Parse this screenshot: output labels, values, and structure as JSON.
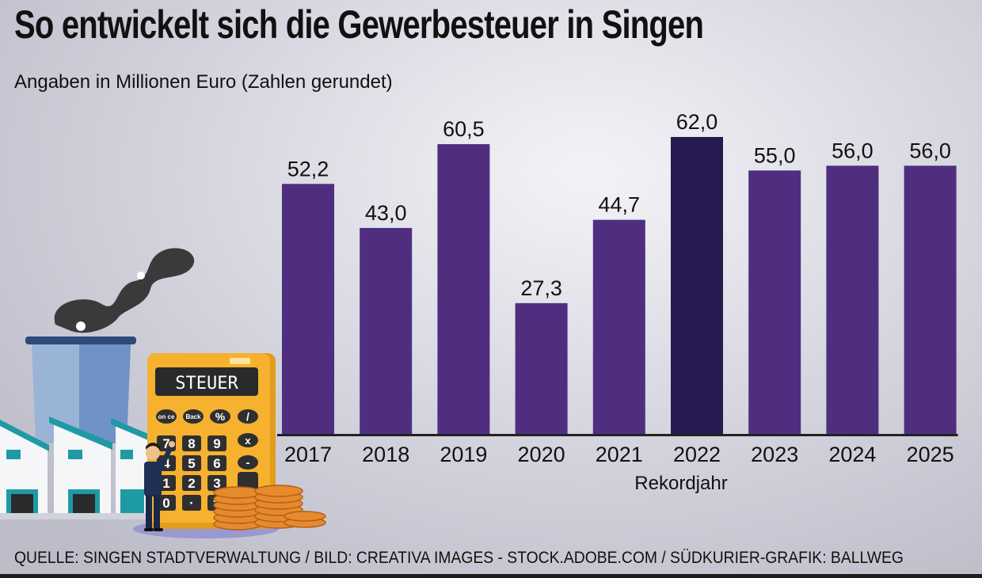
{
  "title": "So entwickelt sich die Gewerbesteuer in Singen",
  "subtitle": "Angaben in Millionen Euro (Zahlen gerundet)",
  "source": "QUELLE: SINGEN STADTVERWALTUNG / BILD: CREATIVA IMAGES - STOCK.ADOBE.COM / SÜDKURIER-GRAFIK: BALLWEG",
  "colors": {
    "bar": "#4f2e80",
    "highlight_bar": "#271a50",
    "axis": "#222222"
  },
  "illustration": {
    "calculator_display": "STEUER",
    "icons": [
      "factory-icon",
      "calculator-icon",
      "businessman-icon",
      "coins-icon"
    ],
    "keys": [
      "on ce",
      "Back",
      "%",
      "/",
      "7",
      "8",
      "9",
      "x",
      "4",
      "5",
      "6",
      "-",
      "1",
      "2",
      "3",
      "0",
      "·",
      "="
    ]
  },
  "chart_data": {
    "type": "bar",
    "title": "So entwickelt sich die Gewerbesteuer in Singen",
    "subtitle": "Angaben in Millionen Euro (Zahlen gerundet)",
    "categories": [
      "2017",
      "2018",
      "2019",
      "2020",
      "2021",
      "2022",
      "2023",
      "2024",
      "2025"
    ],
    "values": [
      52.2,
      43.0,
      60.5,
      27.3,
      44.7,
      62.0,
      55.0,
      56.0,
      56.0
    ],
    "value_labels": [
      "52,2",
      "43,0",
      "60,5",
      "27,3",
      "44,7",
      "62,0",
      "55,0",
      "56,0",
      "56,0"
    ],
    "highlight": "2022",
    "annotations": [
      {
        "category": "2022",
        "text": "Rekordjahr"
      }
    ],
    "ylim": [
      0,
      62
    ],
    "grid": false,
    "y_axis_visible": false
  }
}
